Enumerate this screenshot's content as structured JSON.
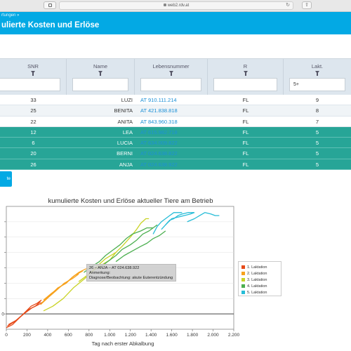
{
  "browser": {
    "url": "web2.rdv.at"
  },
  "header": {
    "breadcrumb": "rtungen »",
    "title": "ulierte Kosten und Erlöse"
  },
  "table": {
    "columns": [
      "SNR",
      "Name",
      "Lebensnummer",
      "R",
      "Lakt."
    ],
    "filters": [
      "",
      "",
      "",
      "",
      "5+"
    ],
    "rows": [
      {
        "snr": "33",
        "name": "LUZI",
        "lnr": "AT 910.111.214",
        "r": "FL",
        "lakt": "9",
        "hl": false
      },
      {
        "snr": "25",
        "name": "BENITA",
        "lnr": "AT 421.838.818",
        "r": "FL",
        "lakt": "8",
        "hl": false
      },
      {
        "snr": "22",
        "name": "ANITA",
        "lnr": "AT 843.960.318",
        "r": "FL",
        "lakt": "7",
        "hl": false
      },
      {
        "snr": "12",
        "name": "LEA",
        "lnr": "AT 615.982.718",
        "r": "FL",
        "lakt": "5",
        "hl": true
      },
      {
        "snr": "6",
        "name": "LUCIA",
        "lnr": "AT 634.009.822",
        "r": "FL",
        "lakt": "5",
        "hl": true
      },
      {
        "snr": "20",
        "name": "BERNI",
        "lnr": "AT 024.638.822",
        "r": "FL",
        "lakt": "5",
        "hl": true
      },
      {
        "snr": "26",
        "name": "ANJA",
        "lnr": "AT 024.638.922",
        "r": "FL",
        "lakt": "5",
        "hl": true
      }
    ]
  },
  "action_button": {
    "label": "te"
  },
  "chart_data": {
    "type": "line",
    "title": "kumulierte Kosten und Erlöse aktueller Tiere am Betrieb",
    "xlabel": "Tag nach erster Abkalbung",
    "xlim": [
      0,
      2200
    ],
    "x_ticks": [
      "0",
      "200",
      "400",
      "600",
      "800",
      "1.000",
      "1.200",
      "1.400",
      "1.600",
      "1.800",
      "2.000",
      "2.200"
    ],
    "ylim": [
      -10,
      70
    ],
    "y_ticks": [
      0,
      10,
      20,
      30,
      40,
      50,
      60
    ],
    "y_tick_labels": [
      "0",
      "",
      "",
      "",
      "",
      "",
      ""
    ],
    "legend": {
      "position": "right",
      "entries": [
        "1. Laktation",
        "2. Laktation",
        "3. Laktation",
        "4. Laktation",
        "5. Laktation"
      ]
    },
    "colors": [
      "#e64a19",
      "#f7a21e",
      "#c9d326",
      "#4caf50",
      "#26bcd7"
    ],
    "series": [
      {
        "color_index": 0,
        "points": [
          [
            0,
            -9
          ],
          [
            60,
            -7
          ],
          [
            120,
            -3
          ],
          [
            180,
            1
          ],
          [
            240,
            5
          ],
          [
            300,
            7
          ],
          [
            340,
            9
          ]
        ]
      },
      {
        "color_index": 0,
        "points": [
          [
            10,
            -8
          ],
          [
            80,
            -5
          ],
          [
            150,
            -1
          ],
          [
            220,
            3
          ],
          [
            280,
            5
          ],
          [
            330,
            8
          ]
        ]
      },
      {
        "color_index": 0,
        "points": [
          [
            20,
            -7
          ],
          [
            100,
            -4
          ],
          [
            170,
            0
          ],
          [
            250,
            4
          ],
          [
            310,
            6
          ],
          [
            360,
            8
          ]
        ]
      },
      {
        "color_index": 1,
        "points": [
          [
            340,
            7
          ],
          [
            420,
            12
          ],
          [
            500,
            17
          ],
          [
            580,
            20
          ],
          [
            640,
            24
          ],
          [
            700,
            27
          ],
          [
            760,
            29
          ],
          [
            800,
            30
          ]
        ]
      },
      {
        "color_index": 1,
        "points": [
          [
            330,
            6
          ],
          [
            410,
            11
          ],
          [
            480,
            15
          ],
          [
            560,
            20
          ],
          [
            640,
            23
          ],
          [
            700,
            26
          ]
        ]
      },
      {
        "color_index": 1,
        "points": [
          [
            360,
            9
          ],
          [
            430,
            13
          ],
          [
            510,
            17
          ],
          [
            590,
            21
          ],
          [
            660,
            25
          ],
          [
            740,
            28
          ]
        ]
      },
      {
        "color_index": 2,
        "points": [
          [
            360,
            2
          ],
          [
            450,
            5
          ],
          [
            550,
            10
          ],
          [
            650,
            17
          ],
          [
            760,
            23
          ],
          [
            860,
            30
          ],
          [
            960,
            36
          ],
          [
            1060,
            40
          ],
          [
            1120,
            44
          ],
          [
            1200,
            50
          ],
          [
            1260,
            55
          ],
          [
            1300,
            59
          ],
          [
            1350,
            62
          ],
          [
            1380,
            62
          ]
        ]
      },
      {
        "color_index": 2,
        "points": [
          [
            700,
            21
          ],
          [
            800,
            26
          ],
          [
            900,
            31
          ],
          [
            1000,
            35
          ],
          [
            1060,
            40
          ]
        ]
      },
      {
        "color_index": 3,
        "points": [
          [
            750,
            27
          ],
          [
            830,
            31
          ],
          [
            900,
            34
          ],
          [
            960,
            38
          ],
          [
            1020,
            41
          ],
          [
            1100,
            45
          ],
          [
            1160,
            49
          ],
          [
            1220,
            52
          ],
          [
            1300,
            54
          ],
          [
            1360,
            56
          ],
          [
            1420,
            56
          ]
        ]
      },
      {
        "color_index": 3,
        "points": [
          [
            900,
            30
          ],
          [
            980,
            34
          ],
          [
            1060,
            38
          ],
          [
            1120,
            42
          ],
          [
            1200,
            45
          ],
          [
            1260,
            48
          ],
          [
            1320,
            52
          ],
          [
            1380,
            54
          ],
          [
            1420,
            56
          ],
          [
            1460,
            58
          ]
        ]
      },
      {
        "color_index": 3,
        "points": [
          [
            1060,
            34
          ],
          [
            1140,
            38
          ],
          [
            1220,
            41
          ],
          [
            1300,
            44
          ],
          [
            1360,
            46
          ],
          [
            1420,
            49
          ],
          [
            1480,
            51
          ],
          [
            1540,
            54
          ]
        ]
      },
      {
        "color_index": 4,
        "points": [
          [
            1420,
            52
          ],
          [
            1460,
            57
          ],
          [
            1500,
            60
          ],
          [
            1540,
            62
          ],
          [
            1580,
            64
          ],
          [
            1620,
            66
          ],
          [
            1660,
            66
          ],
          [
            1700,
            66
          ]
        ]
      },
      {
        "color_index": 4,
        "points": [
          [
            1500,
            55
          ],
          [
            1540,
            58
          ],
          [
            1580,
            61
          ],
          [
            1620,
            62
          ],
          [
            1660,
            64
          ],
          [
            1700,
            65
          ],
          [
            1760,
            66
          ],
          [
            1820,
            66
          ]
        ]
      },
      {
        "color_index": 4,
        "points": [
          [
            1540,
            58
          ],
          [
            1600,
            62
          ],
          [
            1660,
            63
          ],
          [
            1720,
            64
          ],
          [
            1780,
            65
          ],
          [
            1820,
            66
          ]
        ]
      },
      {
        "color_index": 4,
        "points": [
          [
            1750,
            60
          ],
          [
            1820,
            62
          ],
          [
            1870,
            64
          ],
          [
            1920,
            66
          ],
          [
            1980,
            65
          ],
          [
            2020,
            64
          ],
          [
            2060,
            64
          ]
        ]
      }
    ],
    "tooltip": {
      "line1": "26 – ANJA – AT 024.638.922",
      "line2": "Anmerkung:",
      "line3": "Diagnose/Beobachtung: akute Euterentzündung"
    }
  }
}
